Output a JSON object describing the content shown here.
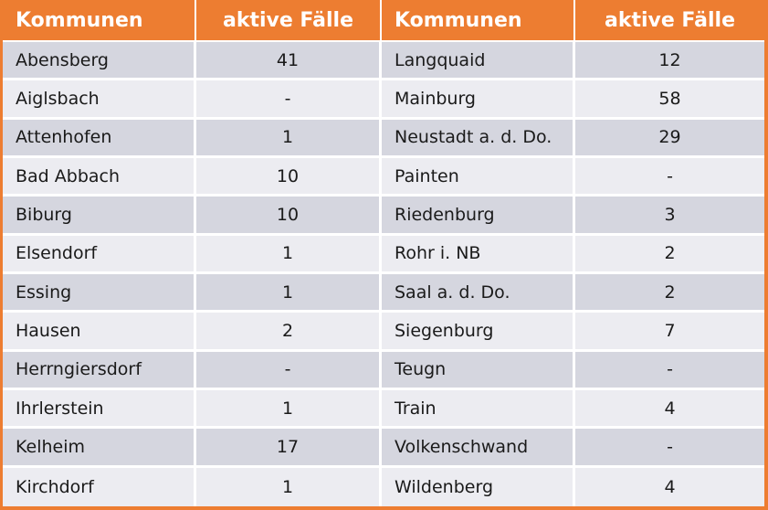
{
  "colors": {
    "accent_orange": "#ED7D31",
    "row_dark": "#D5D6DF",
    "row_light": "#ECECF1",
    "header_text": "#FFFFFF",
    "body_text": "#1A1A1A"
  },
  "chart_data": {
    "type": "table",
    "title": "",
    "columns": [
      "Kommunen",
      "aktive Fälle",
      "Kommunen",
      "aktive Fälle"
    ],
    "rows": [
      [
        "Abensberg",
        "41",
        "Langquaid",
        "12"
      ],
      [
        "Aiglsbach",
        "-",
        "Mainburg",
        "58"
      ],
      [
        "Attenhofen",
        "1",
        "Neustadt a. d. Do.",
        "29"
      ],
      [
        "Bad Abbach",
        "10",
        "Painten",
        "-"
      ],
      [
        "Biburg",
        "10",
        "Riedenburg",
        "3"
      ],
      [
        "Elsendorf",
        "1",
        "Rohr i. NB",
        "2"
      ],
      [
        "Essing",
        "1",
        "Saal a. d. Do.",
        "2"
      ],
      [
        "Hausen",
        "2",
        "Siegenburg",
        "7"
      ],
      [
        "Herrngiersdorf",
        "-",
        "Teugn",
        "-"
      ],
      [
        "Ihrlerstein",
        "1",
        "Train",
        "4"
      ],
      [
        "Kelheim",
        "17",
        "Volkenschwand",
        "-"
      ],
      [
        "Kirchdorf",
        "1",
        "Wildenberg",
        "4"
      ]
    ]
  }
}
